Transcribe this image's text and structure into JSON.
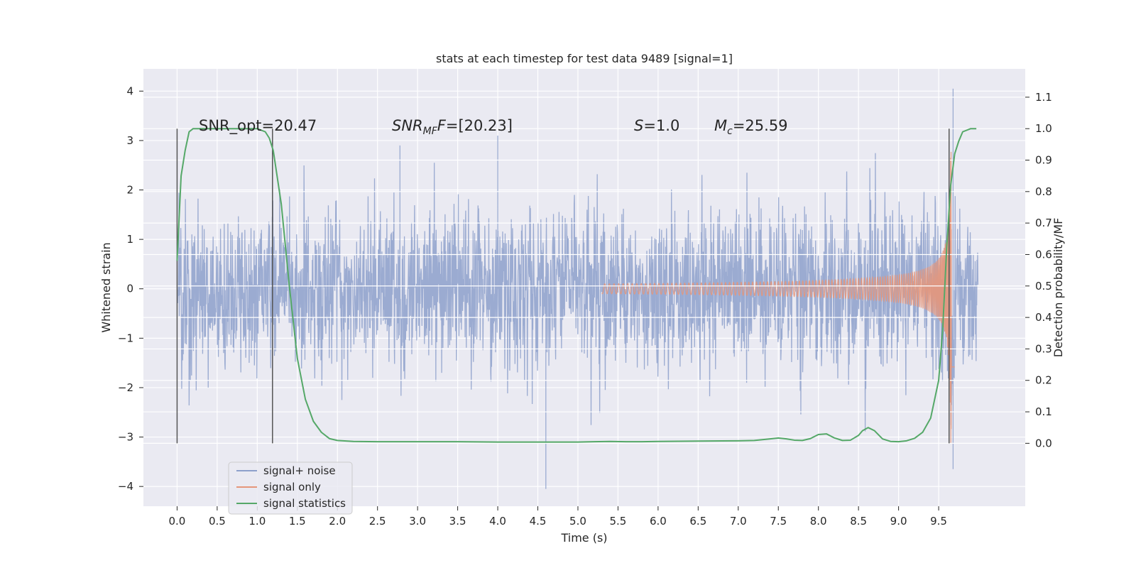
{
  "chart_data": {
    "type": "line",
    "title": "stats at each timestep for test data 9489 [signal=1]",
    "xlabel": "Time (s)",
    "ylabel_left": "Whitened strain",
    "ylabel_right": "Detection probability/MF",
    "xlim": [
      -0.42,
      10.58
    ],
    "ylim_left": [
      -4.4,
      4.45
    ],
    "ylim_right": [
      -0.2,
      1.19
    ],
    "x_ticks": [
      "0.0",
      "0.5",
      "1.0",
      "1.5",
      "2.0",
      "2.5",
      "3.0",
      "3.5",
      "4.0",
      "4.5",
      "5.0",
      "5.5",
      "6.0",
      "6.5",
      "7.0",
      "7.5",
      "8.0",
      "8.5",
      "9.0",
      "9.5"
    ],
    "y_ticks_left": [
      "4",
      "3",
      "2",
      "1",
      "0",
      "−1",
      "−2",
      "−3",
      "−4"
    ],
    "y_ticks_right": [
      "1.1",
      "1.0",
      "0.9",
      "0.8",
      "0.7",
      "0.6",
      "0.5",
      "0.4",
      "0.3",
      "0.2",
      "0.1",
      "0.0"
    ],
    "grid": true,
    "legend_position": "lower-left",
    "annotations": {
      "snr_opt": "SNR_opt=20.47",
      "snr_mf_sym": "SNR",
      "snr_mf_sub": "MF",
      "snr_mf_val": "=[20.23]",
      "s_sym": "S",
      "s_val": "=1.0",
      "mc_sym": "M",
      "mc_sub": "c",
      "mc_val": "=25.59"
    },
    "vertical_markers": [
      0.0,
      1.19,
      9.63
    ],
    "series": [
      {
        "name": "signal+ noise",
        "color": "#8da0cb",
        "kind": "noise",
        "x_range": [
          0.0,
          9.99
        ],
        "envelope_approx": 2.5,
        "extremes": [
          [
            4.6,
            -4.05
          ],
          [
            9.68,
            4.05
          ],
          [
            9.68,
            -3.65
          ],
          [
            4.0,
            3.1
          ],
          [
            2.78,
            2.9
          ]
        ]
      },
      {
        "name": "signal only",
        "color": "#e5967a",
        "kind": "chirp",
        "x_range": [
          5.3,
          9.7
        ],
        "peak_amplitude": 3.3
      },
      {
        "name": "signal statistics",
        "color": "#55a868",
        "x": [
          0.0,
          0.05,
          0.1,
          0.15,
          0.2,
          0.3,
          0.5,
          0.8,
          1.0,
          1.1,
          1.15,
          1.2,
          1.3,
          1.4,
          1.5,
          1.6,
          1.7,
          1.8,
          1.9,
          2.0,
          2.2,
          2.5,
          3.0,
          3.5,
          4.0,
          4.5,
          5.0,
          5.2,
          5.4,
          5.6,
          5.8,
          6.0,
          6.5,
          7.0,
          7.2,
          7.4,
          7.5,
          7.6,
          7.7,
          7.8,
          7.9,
          8.0,
          8.1,
          8.2,
          8.3,
          8.4,
          8.5,
          8.55,
          8.62,
          8.7,
          8.8,
          8.9,
          9.0,
          9.1,
          9.2,
          9.3,
          9.4,
          9.5,
          9.55,
          9.6,
          9.65,
          9.7,
          9.75,
          9.8,
          9.9,
          9.97
        ],
        "values": [
          0.58,
          0.85,
          0.93,
          0.99,
          1.0,
          1.0,
          1.0,
          1.0,
          1.0,
          0.99,
          0.97,
          0.93,
          0.76,
          0.5,
          0.27,
          0.14,
          0.07,
          0.035,
          0.015,
          0.009,
          0.006,
          0.005,
          0.005,
          0.005,
          0.004,
          0.004,
          0.004,
          0.005,
          0.006,
          0.005,
          0.005,
          0.006,
          0.007,
          0.008,
          0.009,
          0.014,
          0.017,
          0.014,
          0.01,
          0.009,
          0.015,
          0.028,
          0.03,
          0.017,
          0.009,
          0.01,
          0.025,
          0.04,
          0.05,
          0.04,
          0.014,
          0.006,
          0.005,
          0.008,
          0.016,
          0.035,
          0.08,
          0.2,
          0.36,
          0.62,
          0.82,
          0.92,
          0.96,
          0.99,
          1.0,
          1.0
        ]
      }
    ]
  }
}
